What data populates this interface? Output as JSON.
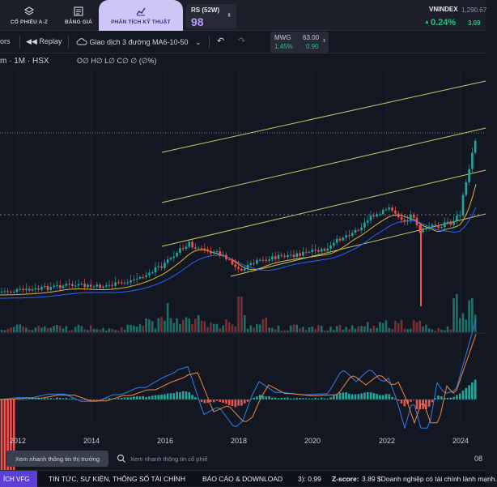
{
  "nav": {
    "tabs": [
      {
        "label": "CỔ PHIẾU A-Z",
        "icon": "layers-icon"
      },
      {
        "label": "BẢNG GIÁ",
        "icon": "price-board-icon"
      },
      {
        "label": "PHÂN TÍCH KỸ THUẬT",
        "icon": "trend-chart-icon",
        "active": true
      }
    ],
    "rs": {
      "label": "RS (52W)",
      "value": "98"
    },
    "index": {
      "name": "VNINDEX",
      "value": "1,290.67",
      "pct": "0.24%",
      "change": "3.09"
    }
  },
  "toolbar": {
    "indicators_label": "ors",
    "replay_label": "Replay",
    "strategy_label": "Giao dịch 3 đường MA6-10-50",
    "quote": {
      "symbol": "MWG",
      "price": "63.00",
      "pct": "1.45%",
      "change": "0.90"
    }
  },
  "legend": {
    "symbol_info": "m · 1M · HSX",
    "ohlc": "O∅ H∅ L∅ C∅ ∅ (∅%)"
  },
  "colors": {
    "up": "#26a69a",
    "down": "#ef5350",
    "channel": "#c9c86a",
    "ma_fast": "#e0b33c",
    "ma_slow": "#2962ff",
    "macd": "#3b7be8",
    "signal": "#f0883e"
  },
  "chart_data": {
    "type": "candlestick",
    "xaxis": {
      "ticks": [
        "2012",
        "2014",
        "2016",
        "2018",
        "2020",
        "2022",
        "2024"
      ]
    },
    "time_partial": "08"
  },
  "footer": {
    "quick_market": "Xem nhanh thông tin thị trường",
    "quick_stock_placeholder": "Xem nhanh thông tin cổ phiế"
  },
  "bottombar": {
    "tab": "ÍCH VFG",
    "news": "TIN TỨC, SỰ KIỆN, THÔNG SỐ TÀI CHÍNH",
    "reports": "BÁO CÁO & DOWNLOAD",
    "metric": "3): 0.99",
    "zscore_label": "Z-score:",
    "zscore_text": "3.89 $Doanh nghiệp có tài chính lành mạnh."
  }
}
